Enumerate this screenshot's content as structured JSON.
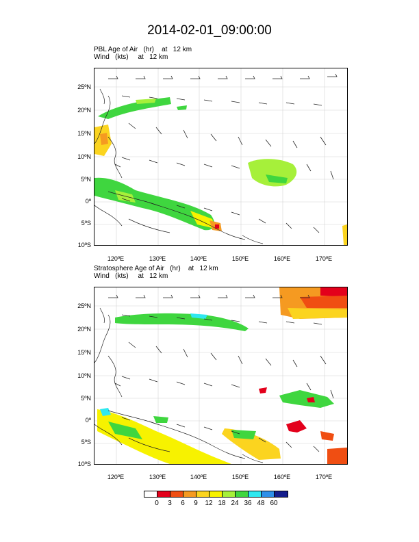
{
  "title": "2014-02-01_09:00:00",
  "panels": [
    {
      "line1": "PBL Age of Air   (hr)    at   12 km",
      "line2": "Wind   (kts)     at   12 km"
    },
    {
      "line1": "Stratosphere Age of Air   (hr)    at   12 km",
      "line2": "Wind   (kts)     at   12 km"
    }
  ],
  "lat_labels": [
    "25ºN",
    "20ºN",
    "15ºN",
    "10ºN",
    "5ºN",
    "0º",
    "5ºS",
    "10ºS"
  ],
  "lon_labels": [
    "120ºE",
    "130ºE",
    "140ºE",
    "150ºE",
    "160ºE",
    "170ºE"
  ],
  "colorbar": {
    "labels": [
      "0",
      "3",
      "6",
      "9",
      "12",
      "18",
      "24",
      "36",
      "48",
      "60"
    ],
    "colors": [
      "#ffffff",
      "#e3001b",
      "#f04e12",
      "#f59a21",
      "#fbd41f",
      "#f7f200",
      "#a6f03a",
      "#3fd63f",
      "#2fe8f0",
      "#2e90e8",
      "#141d8c"
    ]
  },
  "colors": {
    "frame": "#000000",
    "grid": "#d4d4d4",
    "coast": "#222222"
  }
}
